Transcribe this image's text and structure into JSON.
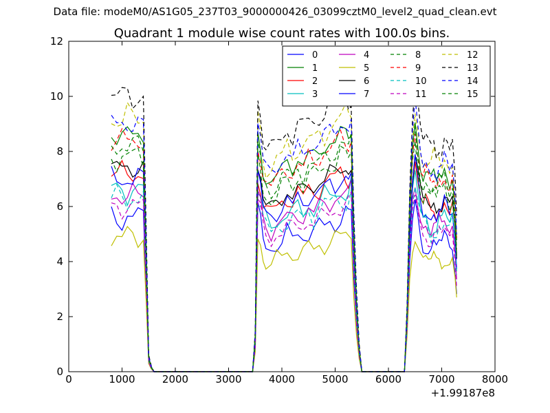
{
  "figure": {
    "suptitle": "Data file: modeM0/AS1G05_237T03_9000000426_03099cztM0_level2_quad_clean.evt"
  },
  "chart_data": {
    "type": "line",
    "title": "Quadrant 1 module wise count rates with 100.0s bins.",
    "xlabel": "",
    "ylabel": "",
    "x_offset_label": "+1.99187e8",
    "xlim": [
      0,
      8000
    ],
    "ylim": [
      0,
      12
    ],
    "xticks": [
      0,
      1000,
      2000,
      3000,
      4000,
      5000,
      6000,
      7000,
      8000
    ],
    "yticks": [
      0,
      2,
      4,
      6,
      8,
      10,
      12
    ],
    "grid": false,
    "legend": {
      "placement": "top-right",
      "columns": 4
    },
    "segments": [
      {
        "x": [
          800,
          900,
          1000,
          1100,
          1200,
          1300,
          1400,
          1450,
          1500,
          1550,
          1600
        ],
        "active": [
          1,
          1,
          1,
          1,
          1,
          1,
          1,
          0.55,
          0.06,
          0.02,
          0
        ]
      },
      {
        "x": [
          1600,
          3450
        ],
        "active": [
          0,
          0
        ]
      },
      {
        "x": [
          3450,
          3500,
          3550,
          3600,
          3650,
          3700,
          3800,
          3900,
          4000,
          4100,
          4200,
          4300,
          4400,
          4500,
          4600,
          4700,
          4800,
          4900,
          5000,
          5100,
          5200,
          5250,
          5300,
          5350,
          5400,
          5450,
          5500
        ],
        "active": [
          0,
          0.15,
          1,
          0.95,
          0.85,
          0.82,
          0.8,
          0.83,
          0.85,
          0.88,
          0.86,
          0.9,
          0.88,
          0.92,
          0.9,
          0.93,
          0.95,
          0.97,
          0.98,
          1,
          1,
          0.99,
          1.02,
          0.6,
          0.3,
          0.1,
          0
        ]
      },
      {
        "x": [
          5500,
          6300
        ],
        "active": [
          0,
          0
        ]
      },
      {
        "x": [
          6300,
          6350,
          6400,
          6450,
          6500,
          6550,
          6600,
          6650,
          6700,
          6750,
          6800,
          6850,
          6900,
          6950,
          7000,
          7050,
          7100,
          7150,
          7200,
          7250,
          7280
        ],
        "active": [
          0,
          0.25,
          0.7,
          0.95,
          1.06,
          0.97,
          0.88,
          0.83,
          0.85,
          0.82,
          0.8,
          0.83,
          0.8,
          0.84,
          0.82,
          0.86,
          0.83,
          0.8,
          0.84,
          0.7,
          0.55
        ]
      }
    ],
    "series": [
      {
        "name": "0",
        "color": "#0000ff",
        "dash": "solid",
        "level": 5.6,
        "amp": 0.35
      },
      {
        "name": "1",
        "color": "#008000",
        "dash": "solid",
        "level": 8.6,
        "amp": 0.25
      },
      {
        "name": "2",
        "color": "#ff0000",
        "dash": "solid",
        "level": 7.2,
        "amp": 0.3
      },
      {
        "name": "3",
        "color": "#00bfbf",
        "dash": "solid",
        "level": 6.6,
        "amp": 0.35
      },
      {
        "name": "4",
        "color": "#bf00bf",
        "dash": "solid",
        "level": 6.4,
        "amp": 0.3
      },
      {
        "name": "5",
        "color": "#bfbf00",
        "dash": "solid",
        "level": 4.9,
        "amp": 0.3
      },
      {
        "name": "6",
        "color": "#000000",
        "dash": "solid",
        "level": 7.4,
        "amp": 0.25
      },
      {
        "name": "7",
        "color": "#0000ff",
        "dash": "solid",
        "level": 7.0,
        "amp": 0.3
      },
      {
        "name": "8",
        "color": "#008000",
        "dash": "dashed",
        "level": 7.8,
        "amp": 0.35
      },
      {
        "name": "9",
        "color": "#ff0000",
        "dash": "dashed",
        "level": 8.4,
        "amp": 0.3
      },
      {
        "name": "10",
        "color": "#00bfbf",
        "dash": "dashed",
        "level": 6.3,
        "amp": 0.35
      },
      {
        "name": "11",
        "color": "#bf00bf",
        "dash": "dashed",
        "level": 6.0,
        "amp": 0.3
      },
      {
        "name": "12",
        "color": "#bfbf00",
        "dash": "dashed",
        "level": 9.2,
        "amp": 0.4
      },
      {
        "name": "13",
        "color": "#000000",
        "dash": "dashed",
        "level": 10.0,
        "amp": 0.35
      },
      {
        "name": "14",
        "color": "#0000ff",
        "dash": "dashed",
        "level": 9.0,
        "amp": 0.25
      },
      {
        "name": "15",
        "color": "#008000",
        "dash": "dashed",
        "level": 8.2,
        "amp": 0.3
      }
    ]
  }
}
